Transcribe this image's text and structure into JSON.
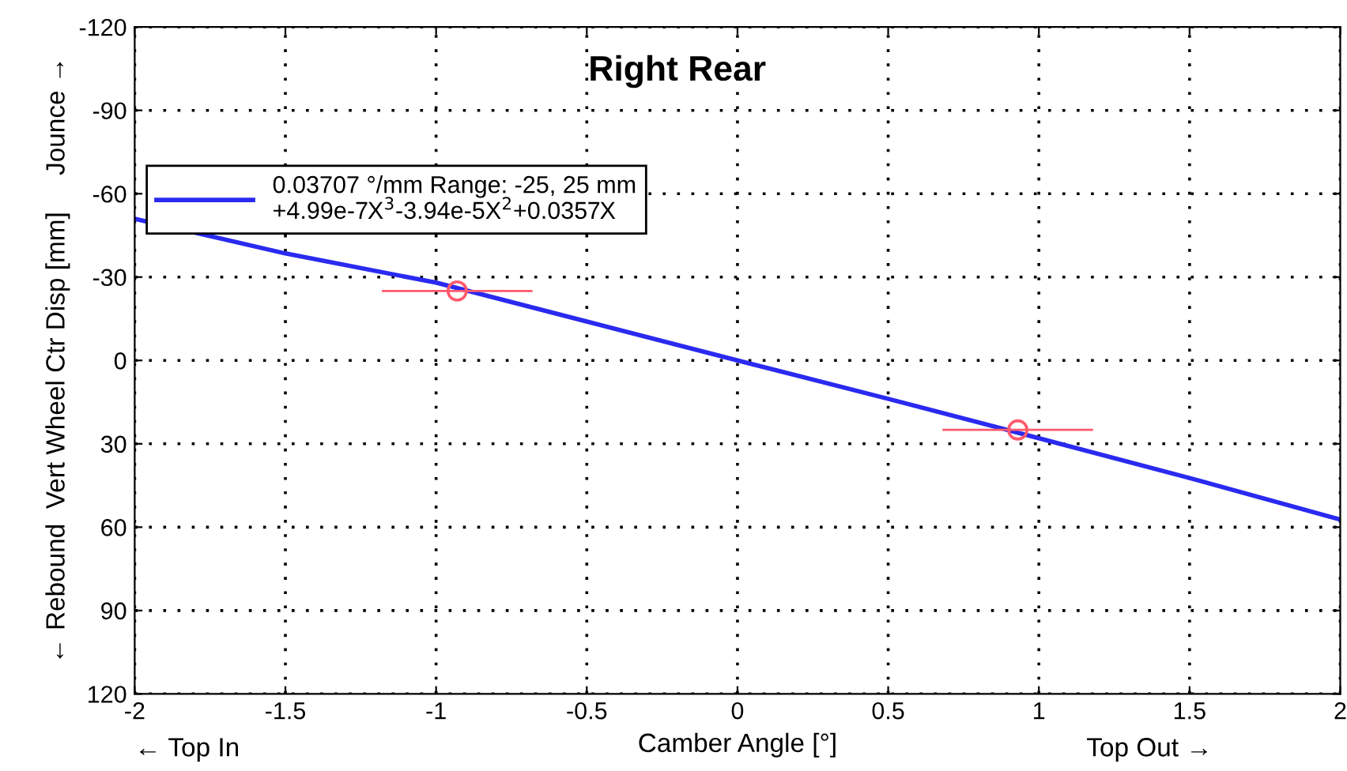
{
  "chart_data": {
    "type": "line",
    "title": "Right Rear",
    "xlabel": "Camber Angle [°]",
    "ylabel": "← Rebound  Vert Wheel Ctr Disp [mm]     Jounce →",
    "annotations": [
      "← Top In",
      "Top Out →"
    ],
    "series": [
      {
        "name": "0.03707 °/mm Range: -25, 25 mm\n+4.99e-7X$^{3}$-3.94e-5X$^{2}$+0.0357X",
        "color": "#2a2af0",
        "x": [
          -2,
          -1.5,
          -1,
          -0.5,
          0,
          0.5,
          1,
          1.5,
          2
        ],
        "values": [
          -51,
          -38.5,
          -28,
          -14,
          0,
          13.8,
          28,
          42.3,
          57.3
        ]
      },
      {
        "type": "scatter",
        "color": "#ff5a6e",
        "marker": "circle",
        "x": [
          -0.93,
          0.93
        ],
        "values": [
          -25,
          25
        ],
        "xerrors": [
          0.25,
          0.25
        ]
      }
    ],
    "xlim": [
      -2,
      2
    ],
    "xticks": [
      -2,
      -1.5,
      -1,
      -0.5,
      0,
      0.5,
      1,
      1.5,
      2
    ],
    "ylim": [
      120,
      -120
    ],
    "yticks": [
      -120,
      -90,
      -60,
      -30,
      0,
      30,
      60,
      90,
      120
    ],
    "grid": true,
    "legend": "top left"
  }
}
